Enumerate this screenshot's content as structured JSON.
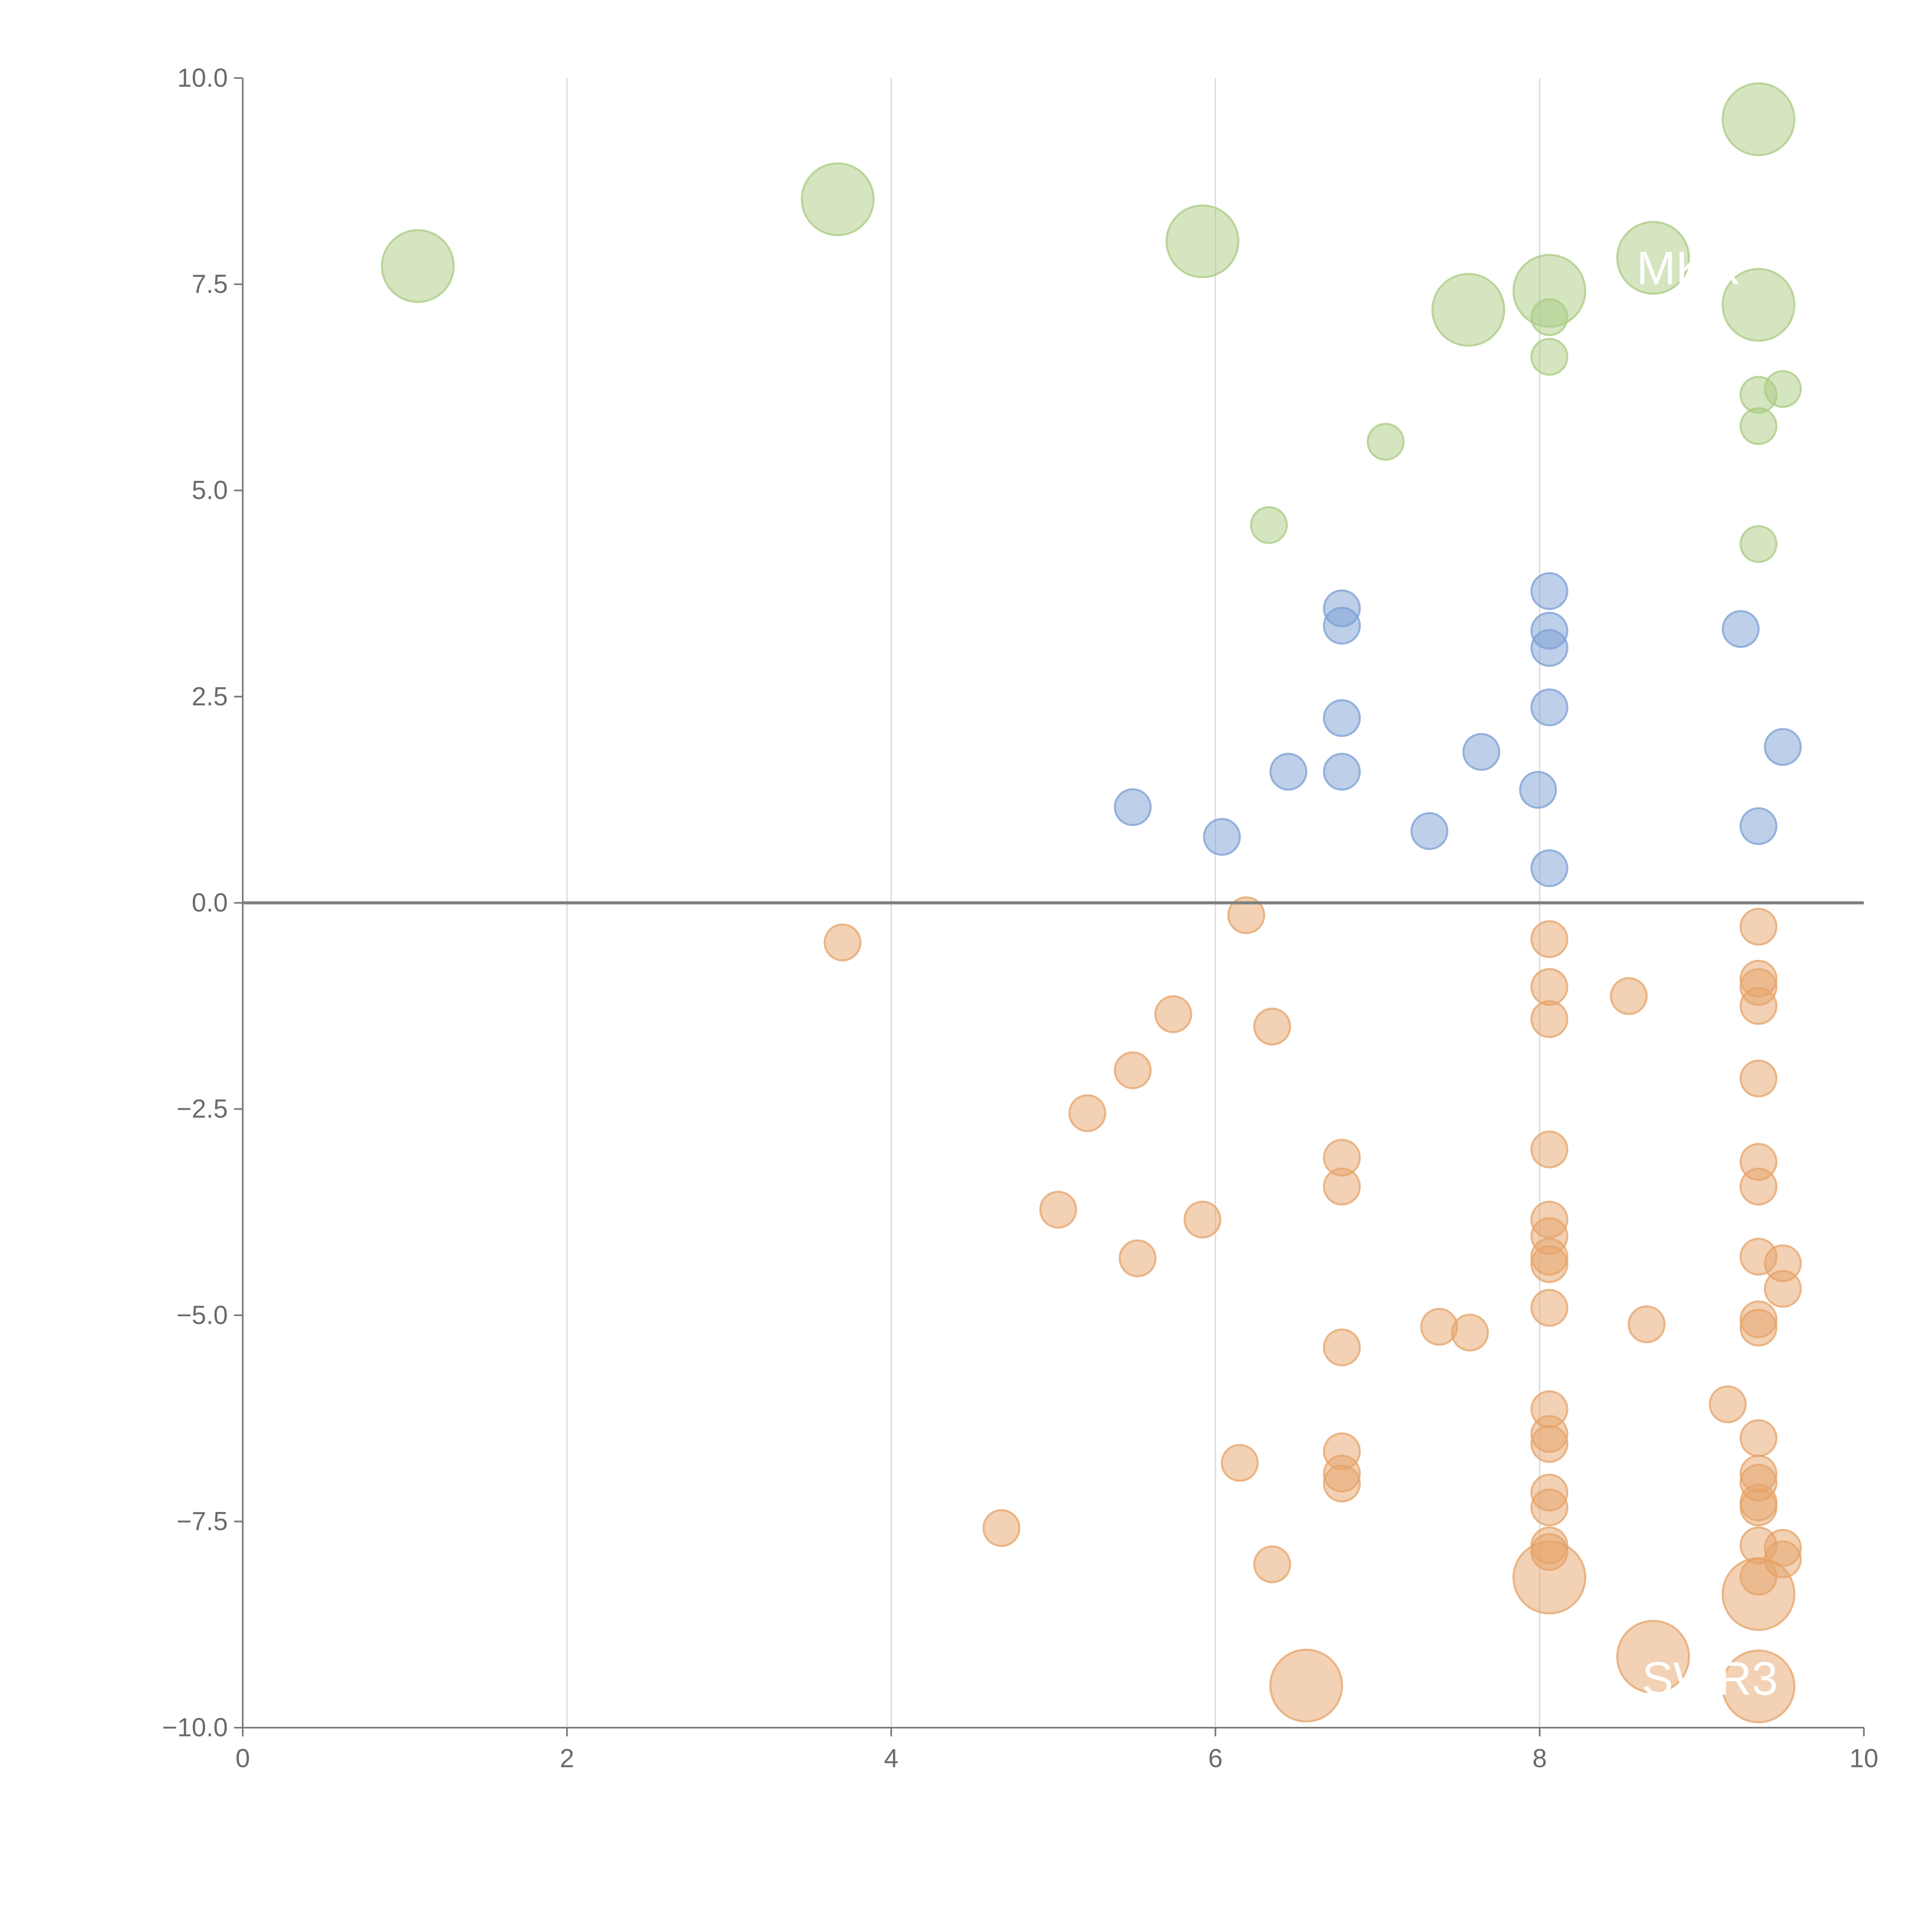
{
  "chart_data": {
    "type": "scatter",
    "title": "",
    "xlabel": "",
    "ylabel": "",
    "xlim": [
      0,
      10
    ],
    "ylim": [
      -10,
      10
    ],
    "x_ticks": [
      0,
      2,
      4,
      6,
      8,
      10
    ],
    "x_tick_labels": [
      "0",
      "2",
      "4",
      "6",
      "8",
      "10"
    ],
    "y_ticks": [
      10,
      7.5,
      5,
      2.5,
      0,
      -2.5,
      -5,
      -7.5,
      -10
    ],
    "y_tick_labels": [
      "10.0",
      "7.5",
      "5.0",
      "2.5",
      "0.0",
      "−2.5",
      "−5.0",
      "−7.5",
      "−10.0"
    ],
    "grid": "vertical",
    "zero_line": true,
    "legend": "none",
    "point_format": "[x, y, size]",
    "series": [
      {
        "name": "green",
        "color": "#a9cb82",
        "points": [
          [
            1.08,
            7.72,
            4
          ],
          [
            3.67,
            8.53,
            4
          ],
          [
            5.92,
            8.02,
            4
          ],
          [
            7.56,
            7.19,
            4
          ],
          [
            8.06,
            7.42,
            4
          ],
          [
            8.7,
            7.82,
            4
          ],
          [
            9.35,
            9.5,
            4
          ],
          [
            9.35,
            7.25,
            4
          ],
          [
            8.06,
            7.1,
            1
          ],
          [
            8.06,
            6.62,
            1
          ],
          [
            9.35,
            6.16,
            1
          ],
          [
            9.5,
            6.23,
            1
          ],
          [
            9.35,
            5.78,
            1
          ],
          [
            7.05,
            5.59,
            1
          ],
          [
            6.33,
            4.58,
            1
          ],
          [
            9.35,
            4.35,
            1
          ]
        ]
      },
      {
        "name": "blue",
        "color": "#7c9fd4",
        "points": [
          [
            6.78,
            3.57,
            1
          ],
          [
            6.78,
            3.36,
            1
          ],
          [
            8.06,
            3.78,
            1
          ],
          [
            8.06,
            3.3,
            1
          ],
          [
            8.06,
            3.09,
            1
          ],
          [
            9.24,
            3.32,
            1
          ],
          [
            6.78,
            2.24,
            1
          ],
          [
            8.06,
            2.37,
            1
          ],
          [
            7.64,
            1.83,
            1
          ],
          [
            9.5,
            1.89,
            1
          ],
          [
            6.45,
            1.59,
            1
          ],
          [
            6.78,
            1.59,
            1
          ],
          [
            5.49,
            1.16,
            1
          ],
          [
            7.99,
            1.37,
            1
          ],
          [
            6.04,
            0.8,
            1
          ],
          [
            7.32,
            0.87,
            1
          ],
          [
            9.35,
            0.93,
            1
          ],
          [
            8.06,
            0.42,
            1
          ]
        ]
      },
      {
        "name": "orange",
        "color": "#e6a36a",
        "points": [
          [
            6.19,
            -0.15,
            1
          ],
          [
            3.7,
            -0.48,
            1
          ],
          [
            9.35,
            -0.29,
            1
          ],
          [
            8.06,
            -0.44,
            1
          ],
          [
            8.06,
            -1.02,
            1
          ],
          [
            9.35,
            -0.92,
            1
          ],
          [
            9.35,
            -1.02,
            1
          ],
          [
            9.35,
            -1.25,
            1
          ],
          [
            8.55,
            -1.13,
            1
          ],
          [
            5.74,
            -1.35,
            1
          ],
          [
            6.35,
            -1.5,
            1
          ],
          [
            8.06,
            -1.41,
            1
          ],
          [
            5.49,
            -2.03,
            1
          ],
          [
            9.35,
            -2.13,
            1
          ],
          [
            5.21,
            -2.55,
            1
          ],
          [
            8.06,
            -2.99,
            1
          ],
          [
            6.78,
            -3.09,
            1
          ],
          [
            9.35,
            -3.14,
            1
          ],
          [
            6.78,
            -3.44,
            1
          ],
          [
            9.35,
            -3.44,
            1
          ],
          [
            5.03,
            -3.72,
            1
          ],
          [
            5.92,
            -3.84,
            1
          ],
          [
            8.06,
            -3.84,
            1
          ],
          [
            8.06,
            -4.04,
            1
          ],
          [
            5.52,
            -4.31,
            1
          ],
          [
            8.06,
            -4.29,
            1
          ],
          [
            8.06,
            -4.38,
            1
          ],
          [
            9.35,
            -4.29,
            1
          ],
          [
            9.5,
            -4.37,
            1
          ],
          [
            9.5,
            -4.68,
            1
          ],
          [
            8.06,
            -4.91,
            1
          ],
          [
            9.35,
            -5.05,
            1
          ],
          [
            9.35,
            -5.15,
            1
          ],
          [
            7.38,
            -5.14,
            1
          ],
          [
            7.57,
            -5.21,
            1
          ],
          [
            8.66,
            -5.11,
            1
          ],
          [
            6.78,
            -5.39,
            1
          ],
          [
            9.16,
            -6.08,
            1
          ],
          [
            8.06,
            -6.14,
            1
          ],
          [
            8.06,
            -6.44,
            1
          ],
          [
            8.06,
            -6.56,
            1
          ],
          [
            9.35,
            -6.49,
            1
          ],
          [
            6.78,
            -6.65,
            1
          ],
          [
            6.15,
            -6.79,
            1
          ],
          [
            6.78,
            -6.92,
            1
          ],
          [
            6.78,
            -7.04,
            1
          ],
          [
            9.35,
            -6.92,
            1
          ],
          [
            9.35,
            -7.03,
            1
          ],
          [
            8.06,
            -7.15,
            1
          ],
          [
            8.06,
            -7.33,
            1
          ],
          [
            9.35,
            -7.27,
            1
          ],
          [
            9.35,
            -7.33,
            1
          ],
          [
            4.68,
            -7.58,
            1
          ],
          [
            9.35,
            -7.79,
            1
          ],
          [
            9.5,
            -7.82,
            1
          ],
          [
            9.5,
            -7.96,
            1
          ],
          [
            8.06,
            -7.79,
            1
          ],
          [
            8.06,
            -7.87,
            1
          ],
          [
            6.35,
            -8.02,
            1
          ],
          [
            9.35,
            -8.17,
            1
          ],
          [
            8.06,
            -8.18,
            4
          ],
          [
            9.35,
            -8.38,
            4
          ],
          [
            8.7,
            -9.14,
            4
          ],
          [
            6.56,
            -9.49,
            4
          ],
          [
            9.35,
            -9.5,
            4
          ]
        ]
      }
    ],
    "annotations": [
      {
        "text": "MKR",
        "x": 8.92,
        "y": 7.5
      },
      {
        "text": "SWR3",
        "x": 9.05,
        "y": -9.6
      }
    ]
  }
}
